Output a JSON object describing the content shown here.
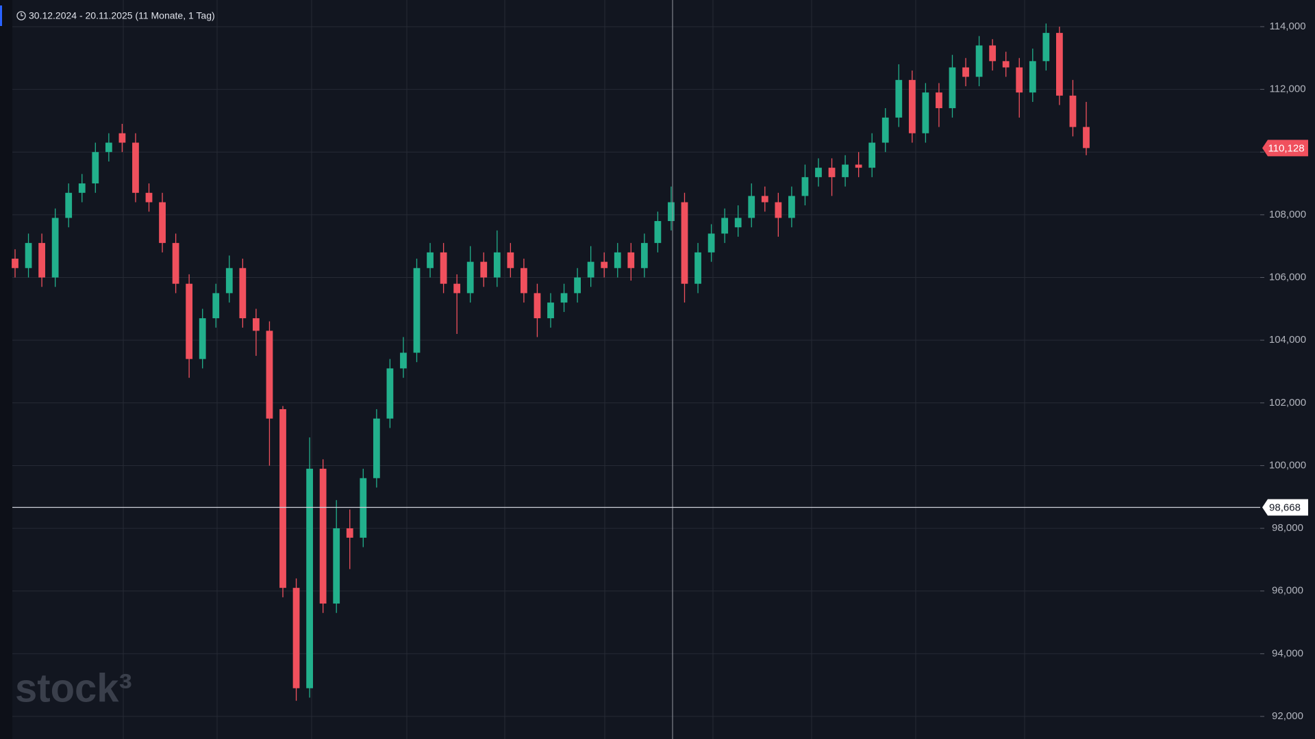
{
  "chart_data": {
    "type": "candlestick",
    "subtitle": "30.12.2024 - 20.11.2025  (11 Monate, 1 Tag)",
    "watermark": "stock³",
    "up_color": "#22b08c",
    "down_color": "#f0505d",
    "grid": true,
    "ylim": [
      91280,
      114850
    ],
    "yticks": [
      {
        "value": 92000,
        "label": "92,000"
      },
      {
        "value": 94000,
        "label": "94,000"
      },
      {
        "value": 96000,
        "label": "96,000"
      },
      {
        "value": 98000,
        "label": "98,000"
      },
      {
        "value": 100000,
        "label": "100,000"
      },
      {
        "value": 102000,
        "label": "102,000"
      },
      {
        "value": 104000,
        "label": "104,000"
      },
      {
        "value": 106000,
        "label": "106,000"
      },
      {
        "value": 108000,
        "label": "108,000"
      },
      {
        "value": 110000,
        "label": "110,000"
      },
      {
        "value": 112000,
        "label": "112,000"
      },
      {
        "value": 114000,
        "label": "114,000"
      }
    ],
    "last_price": {
      "value": 110128,
      "label": "110,128"
    },
    "crosshair_price": {
      "value": 98668,
      "label": "98,668"
    },
    "open": [
      106600,
      106300,
      107100,
      106000,
      107900,
      108700,
      109000,
      110000,
      110600,
      110300,
      108700,
      108400,
      107100,
      105800,
      103400,
      104700,
      105500,
      106300,
      104700,
      104300,
      101800,
      96100,
      92900,
      99900,
      95600,
      98000,
      97700,
      99600,
      101500,
      103100,
      103600,
      106300,
      106800,
      105800,
      105500,
      106500,
      106000,
      106800,
      106300,
      105500,
      104700,
      105200,
      105500,
      106000,
      106500,
      106300,
      106800,
      106300,
      107100,
      107800,
      108400,
      105800,
      106800,
      107400,
      107600,
      107900,
      108600,
      108400,
      107900,
      108600,
      109200,
      109500,
      109200,
      109600,
      109500,
      110300,
      111100,
      112300,
      110600,
      111900,
      111400,
      112700,
      112400,
      113400,
      112900,
      112700,
      111900,
      112900,
      113800,
      111800,
      110800
    ],
    "high": [
      106900,
      107400,
      107400,
      108200,
      109000,
      109300,
      110300,
      110600,
      110900,
      110600,
      109000,
      108700,
      107400,
      106100,
      105000,
      105800,
      106700,
      106600,
      105000,
      104600,
      101900,
      96400,
      100900,
      100200,
      98900,
      98600,
      99900,
      101800,
      103400,
      104100,
      106600,
      107100,
      107100,
      106100,
      107000,
      106800,
      107500,
      107100,
      106600,
      105800,
      105500,
      105800,
      106300,
      107000,
      106800,
      107100,
      107100,
      107400,
      108100,
      108900,
      108700,
      107100,
      107700,
      108200,
      108300,
      109000,
      108900,
      108700,
      108900,
      109600,
      109800,
      109800,
      109900,
      110000,
      110600,
      111400,
      112800,
      112600,
      112200,
      112200,
      113100,
      113000,
      113700,
      113600,
      113200,
      113000,
      113300,
      114100,
      114000,
      112300,
      111600
    ],
    "low": [
      106000,
      106000,
      105700,
      105700,
      107600,
      108400,
      108700,
      109700,
      110000,
      108400,
      108100,
      106800,
      105500,
      102800,
      103100,
      104400,
      105200,
      104400,
      103500,
      100000,
      95800,
      92500,
      92600,
      95300,
      95300,
      96700,
      97400,
      99300,
      101200,
      102800,
      103300,
      106000,
      105500,
      104200,
      105200,
      105700,
      105700,
      106000,
      105200,
      104100,
      104400,
      104900,
      105200,
      105700,
      106000,
      106000,
      105900,
      106000,
      106800,
      107500,
      105200,
      105500,
      106500,
      107100,
      107300,
      107600,
      108100,
      107300,
      107600,
      108300,
      108900,
      108600,
      108900,
      109200,
      109200,
      110000,
      110800,
      110300,
      110300,
      110800,
      111100,
      112100,
      112100,
      112600,
      112400,
      111100,
      111600,
      112600,
      111500,
      110500,
      109900
    ],
    "close": [
      106300,
      107100,
      106000,
      107900,
      108700,
      109000,
      110000,
      110300,
      110300,
      108700,
      108400,
      107100,
      105800,
      103400,
      104700,
      105500,
      106300,
      104700,
      104300,
      101500,
      96100,
      92900,
      99900,
      95600,
      98000,
      97700,
      99600,
      101500,
      103100,
      103600,
      106300,
      106800,
      105800,
      105500,
      106500,
      106000,
      106800,
      106300,
      105500,
      104700,
      105200,
      105500,
      106000,
      106500,
      106300,
      106800,
      106300,
      107100,
      107800,
      108400,
      105800,
      106800,
      107400,
      107900,
      107900,
      108600,
      108400,
      107900,
      108600,
      109200,
      109500,
      109200,
      109600,
      109500,
      110300,
      111100,
      112300,
      110600,
      111900,
      111400,
      112700,
      112400,
      113400,
      112900,
      112700,
      111900,
      112900,
      113800,
      111800,
      110800,
      110128
    ]
  }
}
